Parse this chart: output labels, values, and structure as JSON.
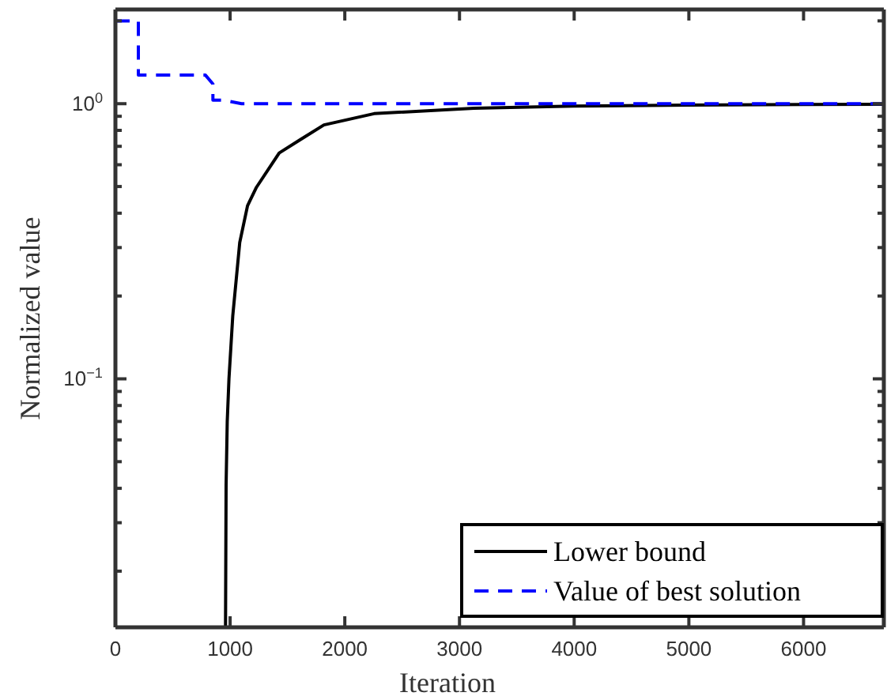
{
  "chart_data": {
    "type": "line",
    "xlabel": "Iteration",
    "ylabel": "Normalized value",
    "log": "y",
    "legend": "bottom right",
    "grid": false,
    "xlim": [
      0,
      6700
    ],
    "xticks": [
      0,
      1000,
      2000,
      3000,
      4000,
      5000,
      6000
    ],
    "ylim": [
      0.0125,
      2.2
    ],
    "yticks": [
      {
        "value": 0.02,
        "label": null
      },
      {
        "value": 0.03,
        "label": null
      },
      {
        "value": 0.04,
        "label": null
      },
      {
        "value": 0.05,
        "label": null
      },
      {
        "value": 0.06,
        "label": null
      },
      {
        "value": 0.07,
        "label": null
      },
      {
        "value": 0.08,
        "label": null
      },
      {
        "value": 0.09,
        "label": null
      },
      {
        "value": 0.1,
        "label": "10$^{−1}$"
      },
      {
        "value": 0.2,
        "label": null
      },
      {
        "value": 0.3,
        "label": null
      },
      {
        "value": 0.4,
        "label": null
      },
      {
        "value": 0.5,
        "label": null
      },
      {
        "value": 0.6,
        "label": null
      },
      {
        "value": 0.7,
        "label": null
      },
      {
        "value": 0.8,
        "label": null
      },
      {
        "value": 0.9,
        "label": null
      },
      {
        "value": 1,
        "label": "10$^{0}$"
      },
      {
        "value": 2,
        "label": null
      }
    ],
    "series": [
      {
        "name": "Lower bound",
        "color": "#000000",
        "line_style": "solid",
        "x": [
          960,
          965,
          975,
          990,
          1023,
          1084,
          1152,
          1230,
          1428,
          1612,
          1818,
          2255,
          3127,
          4000,
          5000,
          6000,
          6700
        ],
        "values": [
          0.0125,
          0.041,
          0.07,
          0.1,
          0.169,
          0.313,
          0.426,
          0.497,
          0.662,
          0.74,
          0.837,
          0.92,
          0.963,
          0.98,
          0.988,
          0.993,
          0.995
        ]
      },
      {
        "name": "Value of best solution",
        "color": "#0000ff",
        "line_style": "dashed",
        "x": [
          0,
          200,
          200,
          785,
          850,
          850,
          945,
          1100,
          6700
        ],
        "values": [
          2.0,
          2.0,
          1.27,
          1.27,
          1.18,
          1.03,
          1.03,
          1.0,
          1.0
        ]
      }
    ]
  }
}
